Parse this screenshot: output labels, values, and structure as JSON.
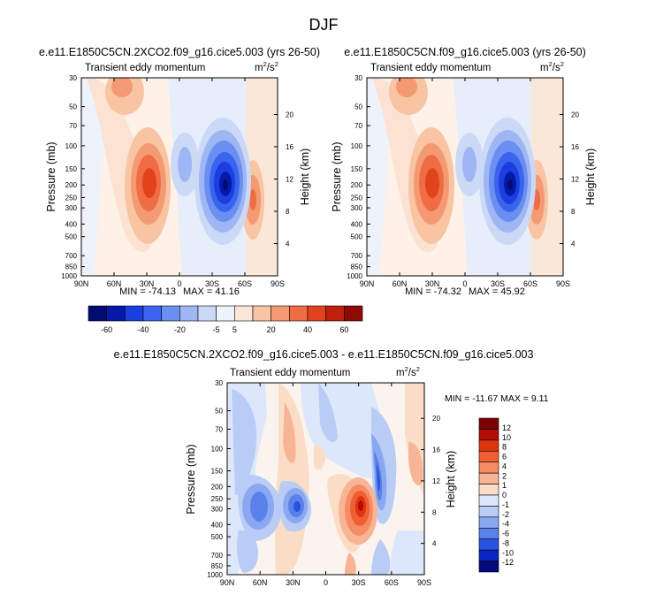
{
  "page_title": "DJF",
  "chart_data": [
    {
      "type": "contour",
      "title": "e.e11.E1850C5CN.2XCO2.f09_g16.cice5.003 (yrs 26-50)",
      "left_subtitle": "Transient eddy momentum",
      "units_base": "m",
      "units_sup1": "2",
      "units_mid": "/s",
      "units_sup2": "2",
      "ylabel": "Pressure (mb)",
      "ylabel_right": "Height (km)",
      "x_ticks": [
        "90N",
        "60N",
        "30N",
        "0",
        "30S",
        "60S",
        "90S"
      ],
      "y_ticks": [
        "30",
        "50",
        "70",
        "100",
        "150",
        "200",
        "250",
        "300",
        "400",
        "500",
        "700",
        "850",
        "1000"
      ],
      "height_ticks": [
        "20",
        "16",
        "12",
        "8",
        "4"
      ],
      "min_label": "MIN = -74.13",
      "max_label": "MAX =  41.16",
      "min_value": -74.13,
      "max_value": 41.16,
      "levels": [
        "-60",
        "-40",
        "-20",
        "-5",
        "5",
        "20",
        "40",
        "60"
      ]
    },
    {
      "type": "contour",
      "title": "e.e11.E1850C5CN.f09_g16.cice5.003 (yrs 26-50)",
      "left_subtitle": "Transient eddy momentum",
      "units_base": "m",
      "units_sup1": "2",
      "units_mid": "/s",
      "units_sup2": "2",
      "ylabel": "Pressure (mb)",
      "ylabel_right": "Height (km)",
      "x_ticks": [
        "90N",
        "60N",
        "30N",
        "0",
        "30S",
        "60S",
        "90S"
      ],
      "y_ticks": [
        "30",
        "50",
        "70",
        "100",
        "150",
        "200",
        "250",
        "300",
        "400",
        "500",
        "700",
        "850",
        "1000"
      ],
      "height_ticks": [
        "20",
        "16",
        "12",
        "8",
        "4"
      ],
      "min_label": "MIN = -74.32",
      "max_label": "MAX =  45.92",
      "min_value": -74.32,
      "max_value": 45.92,
      "levels": [
        "-60",
        "-40",
        "-20",
        "-5",
        "5",
        "20",
        "40",
        "60"
      ]
    },
    {
      "type": "contour",
      "title": "e.e11.E1850C5CN.2XCO2.f09_g16.cice5.003 - e.e11.E1850C5CN.f09_g16.cice5.003",
      "left_subtitle": "Transient eddy momentum",
      "units_base": "m",
      "units_sup1": "2",
      "units_mid": "/s",
      "units_sup2": "2",
      "ylabel": "Pressure (mb)",
      "ylabel_right": "Height (km)",
      "x_ticks": [
        "90N",
        "60N",
        "30N",
        "0",
        "30S",
        "60S",
        "90S"
      ],
      "y_ticks": [
        "30",
        "50",
        "70",
        "100",
        "150",
        "200",
        "250",
        "300",
        "400",
        "500",
        "700",
        "850",
        "1000"
      ],
      "height_ticks": [
        "20",
        "16",
        "12",
        "8",
        "4"
      ],
      "minmax_label": "MIN = -11.67  MAX =   9.11",
      "min_value": -11.67,
      "max_value": 9.11,
      "levels": [
        "12",
        "10",
        "8",
        "6",
        "4",
        "2",
        "1",
        "0",
        "-1",
        "-2",
        "-4",
        "-6",
        "-8",
        "-10",
        "-12"
      ]
    }
  ],
  "colors": {
    "full_scale": [
      "#020b6e",
      "#0519a8",
      "#1a3fe0",
      "#3a64ee",
      "#6a8ff0",
      "#9fb6f5",
      "#cbd9f7",
      "#eef2fb",
      "#fbe7d8",
      "#f8c4a2",
      "#f49a73",
      "#ef6c45",
      "#e2431d",
      "#bf1f0d",
      "#8e0a04"
    ],
    "diff_scale_top_down": [
      "#7a0403",
      "#b10d06",
      "#e0340f",
      "#f05f34",
      "#f58c63",
      "#f8b595",
      "#fbdcc6",
      "#dde7fb",
      "#b8ccf5",
      "#8aa8f0",
      "#5a80ea",
      "#2a52e2",
      "#0a26c0",
      "#020a7c"
    ]
  }
}
